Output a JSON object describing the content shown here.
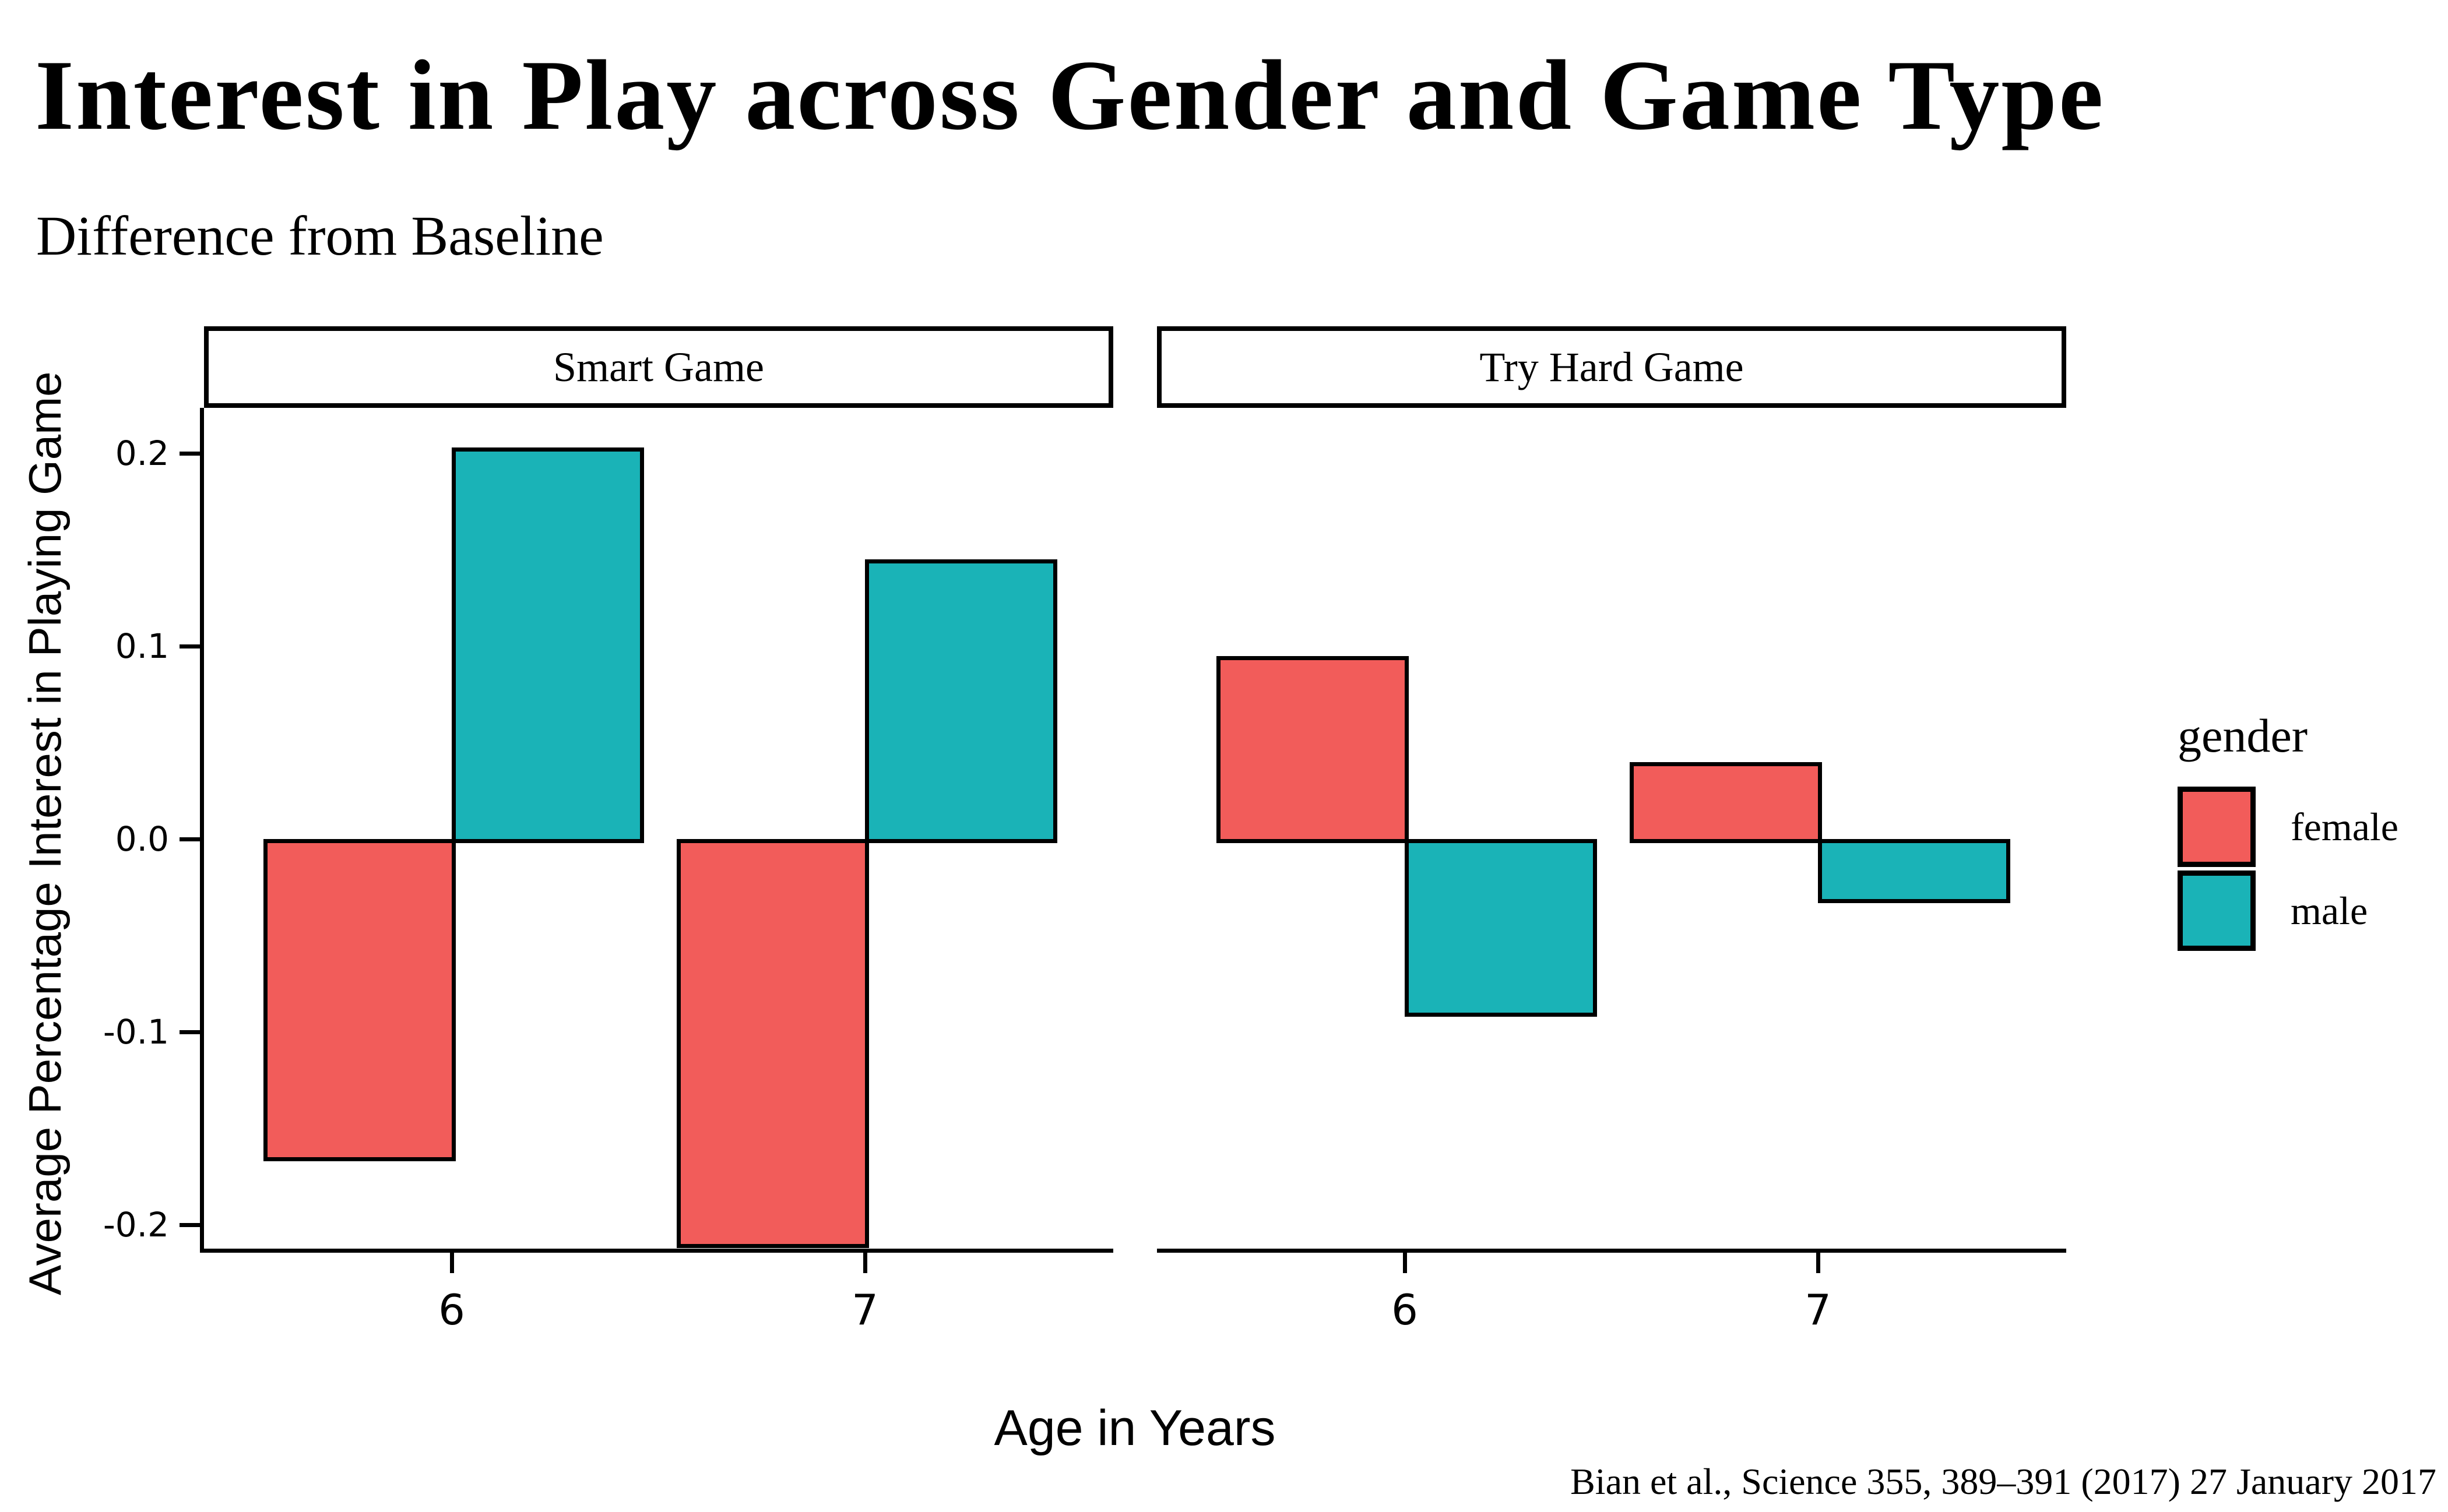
{
  "title": "Interest in Play across Gender and Game Type",
  "subtitle": "Difference from Baseline",
  "caption": "Bian et al., Science 355, 389–391 (2017) 27 January 2017",
  "axes": {
    "x_title": "Age in Years",
    "y_title": "Average Percentage Interest in Playing Game",
    "y_tick_labels": [
      "0.2",
      "0.1",
      "0.0",
      "-0.1",
      "-0.2"
    ],
    "x_tick_labels": [
      "6",
      "7"
    ]
  },
  "legend": {
    "title": "gender",
    "items": [
      {
        "label": "female",
        "color": "#F25C5A"
      },
      {
        "label": "male",
        "color": "#1AB3B7"
      }
    ]
  },
  "chart_data": {
    "type": "bar",
    "facets": [
      {
        "label": "Smart Game",
        "categories": [
          "6",
          "7"
        ],
        "series": [
          {
            "name": "female",
            "values": [
              -0.165,
              -0.21
            ]
          },
          {
            "name": "male",
            "values": [
              0.203,
              0.145
            ]
          }
        ]
      },
      {
        "label": "Try Hard Game",
        "categories": [
          "6",
          "7"
        ],
        "series": [
          {
            "name": "female",
            "values": [
              0.095,
              0.04
            ]
          },
          {
            "name": "male",
            "values": [
              -0.09,
              -0.031
            ]
          }
        ]
      }
    ],
    "title": "Interest in Play across Gender and Game Type",
    "subtitle": "Difference from Baseline",
    "xlabel": "Age in Years",
    "ylabel": "Average Percentage Interest in Playing Game",
    "ylim": [
      -0.2145,
      0.2235
    ],
    "y_tick_values": [
      0.2,
      0.1,
      0.0,
      -0.1,
      -0.2
    ],
    "grid": false,
    "legend_position": "right",
    "bar_outline_color": "#000000",
    "colors": {
      "female": "#F25C5A",
      "male": "#1AB3B7"
    }
  }
}
